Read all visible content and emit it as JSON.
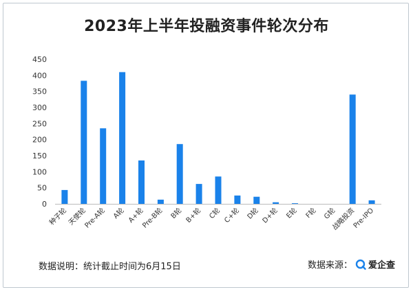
{
  "title": "2023年上半年投融资事件轮次分布",
  "footer": {
    "note": "数据说明：统计截止时间为6月15日",
    "source_label": "数据来源：",
    "source_name": "爱企查"
  },
  "colors": {
    "bar": "#1a82ea",
    "axis": "#bbbbbb",
    "text": "#333333"
  },
  "chart_data": {
    "type": "bar",
    "title": "2023年上半年投融资事件轮次分布",
    "categories": [
      "种子轮",
      "天使轮",
      "Pre-A轮",
      "A轮",
      "A+轮",
      "Pre-B轮",
      "B轮",
      "B+轮",
      "C轮",
      "C+轮",
      "D轮",
      "D+轮",
      "E轮",
      "F轮",
      "G轮",
      "战略投资",
      "Pre-IPO"
    ],
    "values": [
      43,
      383,
      235,
      410,
      135,
      13,
      186,
      62,
      85,
      26,
      22,
      5,
      2,
      0,
      0,
      340,
      11
    ],
    "ylim": [
      0,
      450
    ],
    "yticks": [
      0,
      50,
      100,
      150,
      200,
      250,
      300,
      350,
      400,
      450
    ],
    "grid": false,
    "xlabel": "",
    "ylabel": ""
  }
}
